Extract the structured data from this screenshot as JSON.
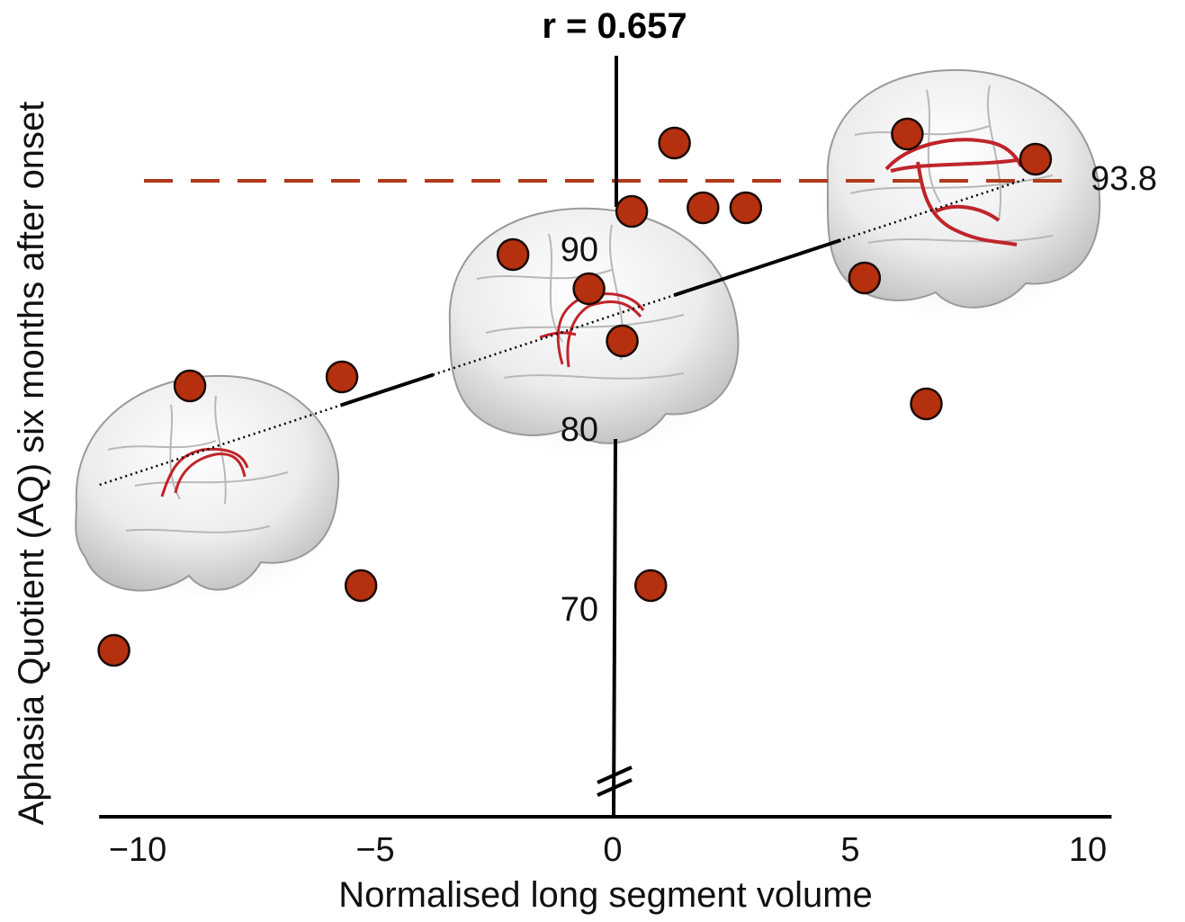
{
  "chart_data": {
    "type": "scatter",
    "title": "r = 0.657",
    "xlabel": "Normalised long segment volume",
    "ylabel": "Aphasia Quotient (AQ) six months after onset",
    "xlim": [
      -11,
      10.5
    ],
    "ylim": [
      57,
      101
    ],
    "x_ticks": [
      -10,
      -5,
      0,
      5,
      10
    ],
    "x_tick_labels": [
      "−10",
      "−5",
      "0",
      "5",
      "10"
    ],
    "y_ticks": [
      70,
      80,
      90
    ],
    "y_tick_labels": [
      "70",
      "80",
      "90"
    ],
    "y_axis_break": true,
    "series": [
      {
        "points": [
          {
            "x": -10.5,
            "y": 67.7
          },
          {
            "x": -8.9,
            "y": 82.4
          },
          {
            "x": -5.7,
            "y": 82.9
          },
          {
            "x": -5.3,
            "y": 71.3
          },
          {
            "x": -2.1,
            "y": 89.7
          },
          {
            "x": -0.5,
            "y": 87.8
          },
          {
            "x": 0.2,
            "y": 84.9
          },
          {
            "x": 0.4,
            "y": 92.1
          },
          {
            "x": 0.8,
            "y": 71.3
          },
          {
            "x": 1.3,
            "y": 95.9
          },
          {
            "x": 1.9,
            "y": 92.3
          },
          {
            "x": 2.8,
            "y": 92.3
          },
          {
            "x": 5.3,
            "y": 88.4
          },
          {
            "x": 6.2,
            "y": 96.4
          },
          {
            "x": 6.6,
            "y": 81.4
          },
          {
            "x": 8.9,
            "y": 95.0
          }
        ]
      }
    ],
    "regression_line": {
      "x": [
        -10.8,
        8.7
      ],
      "y": [
        76.9,
        93.9
      ]
    },
    "reference_line": {
      "y": 93.8,
      "label": "93.8",
      "style": "dashed"
    },
    "colors": {
      "points": "#b5300e",
      "point_edge": "#1a0a05",
      "reference": "#b03a1a",
      "axis": "#000000"
    },
    "grid": false,
    "legend": "none",
    "decorations": [
      "brain-render-left",
      "brain-render-middle",
      "brain-render-right"
    ]
  }
}
